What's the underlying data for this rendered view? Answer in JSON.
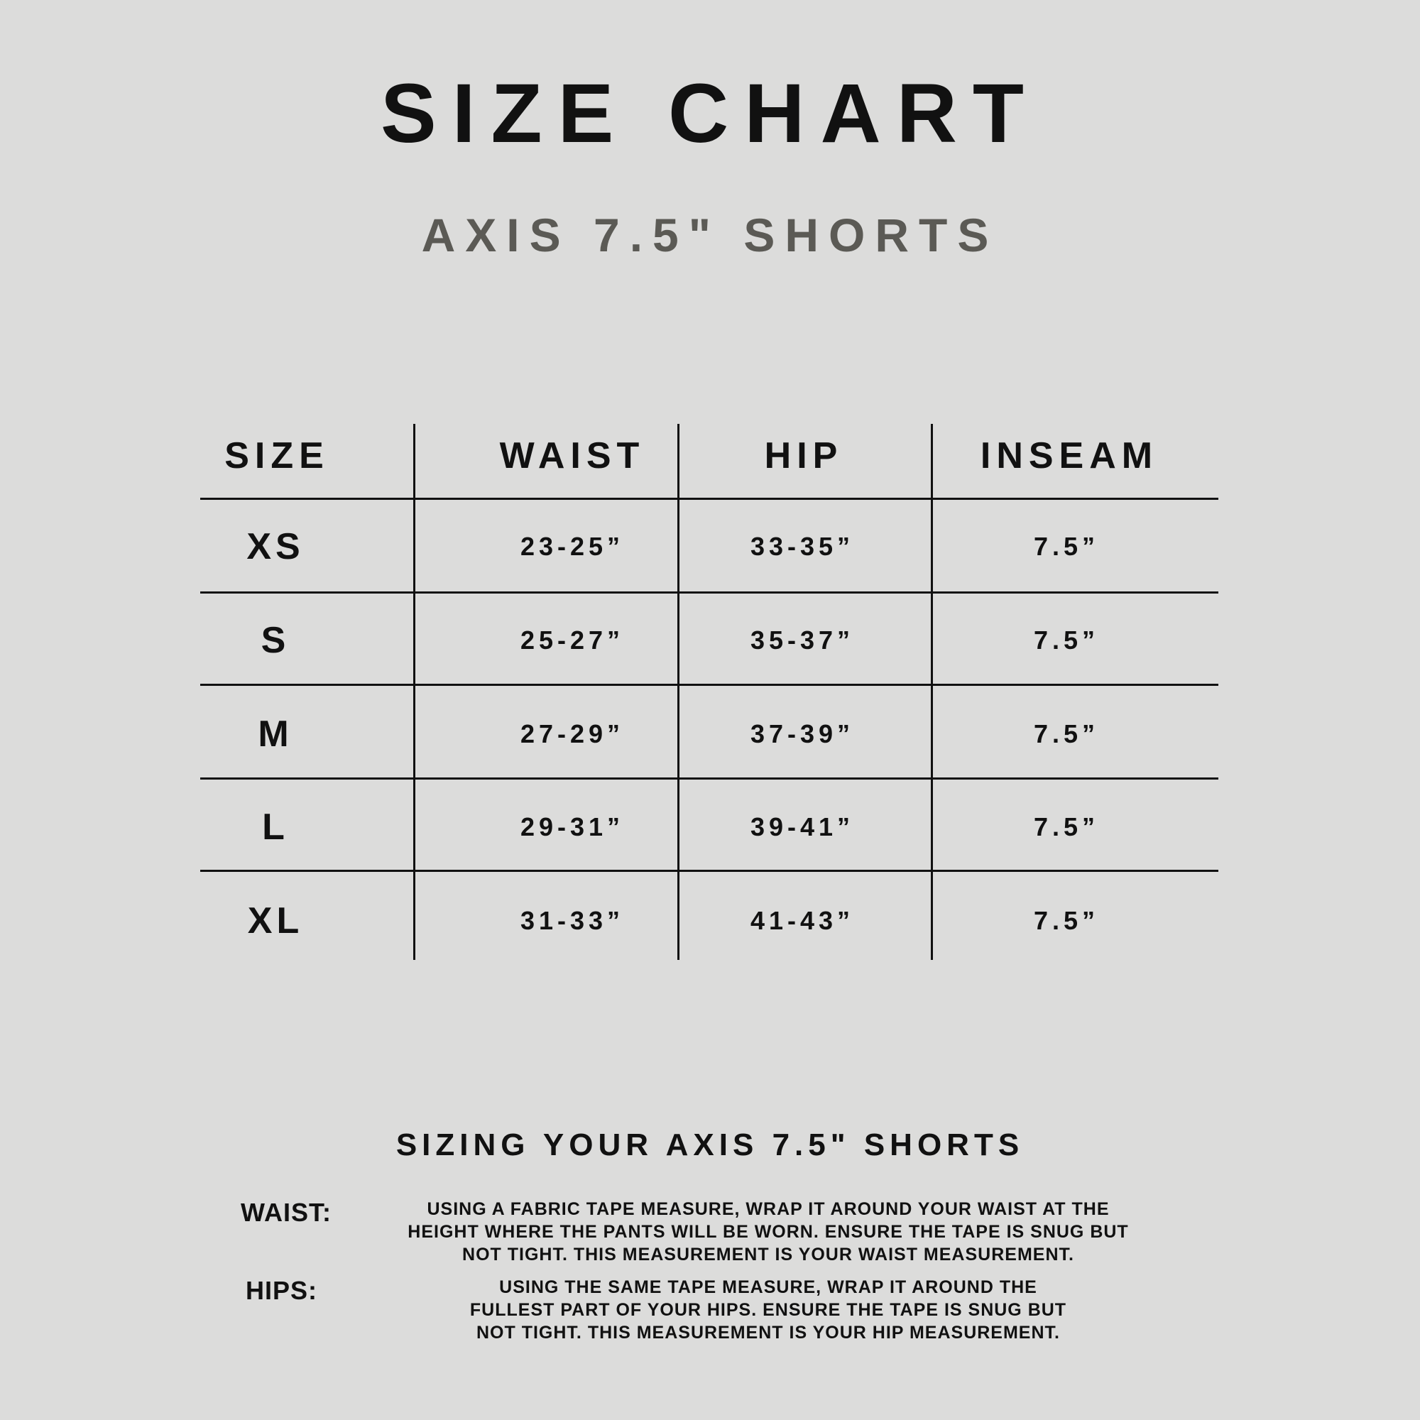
{
  "title": "SIZE CHART",
  "subtitle": "AXIS 7.5\" SHORTS",
  "table": {
    "headers": [
      "SIZE",
      "WAIST",
      "HIP",
      "INSEAM"
    ],
    "rows": [
      {
        "size": "XS",
        "waist": "23-25”",
        "hip": "33-35”",
        "inseam": "7.5”"
      },
      {
        "size": "S",
        "waist": "25-27”",
        "hip": "35-37”",
        "inseam": "7.5”"
      },
      {
        "size": "M",
        "waist": "27-29”",
        "hip": "37-39”",
        "inseam": "7.5”"
      },
      {
        "size": "L",
        "waist": "29-31”",
        "hip": "39-41”",
        "inseam": "7.5”"
      },
      {
        "size": "XL",
        "waist": "31-33”",
        "hip": "41-43”",
        "inseam": "7.5”"
      }
    ]
  },
  "sizing": {
    "heading": "SIZING YOUR AXIS 7.5\" SHORTS",
    "waist_label": "WAIST:",
    "waist_lines": [
      "USING A FABRIC TAPE MEASURE, WRAP IT AROUND YOUR WAIST AT THE",
      "HEIGHT WHERE THE PANTS WILL BE WORN. ENSURE THE TAPE IS SNUG BUT",
      "NOT TIGHT. THIS MEASUREMENT IS YOUR WAIST MEASUREMENT."
    ],
    "hips_label": "HIPS:",
    "hips_lines": [
      "USING THE SAME TAPE MEASURE, WRAP IT AROUND THE",
      "FULLEST PART OF YOUR HIPS. ENSURE THE TAPE IS SNUG BUT",
      "NOT TIGHT. THIS MEASUREMENT IS YOUR HIP MEASUREMENT."
    ]
  },
  "colors": {
    "background": "#dcdcdb",
    "text": "#111111",
    "subtitle": "#5b5a55"
  }
}
